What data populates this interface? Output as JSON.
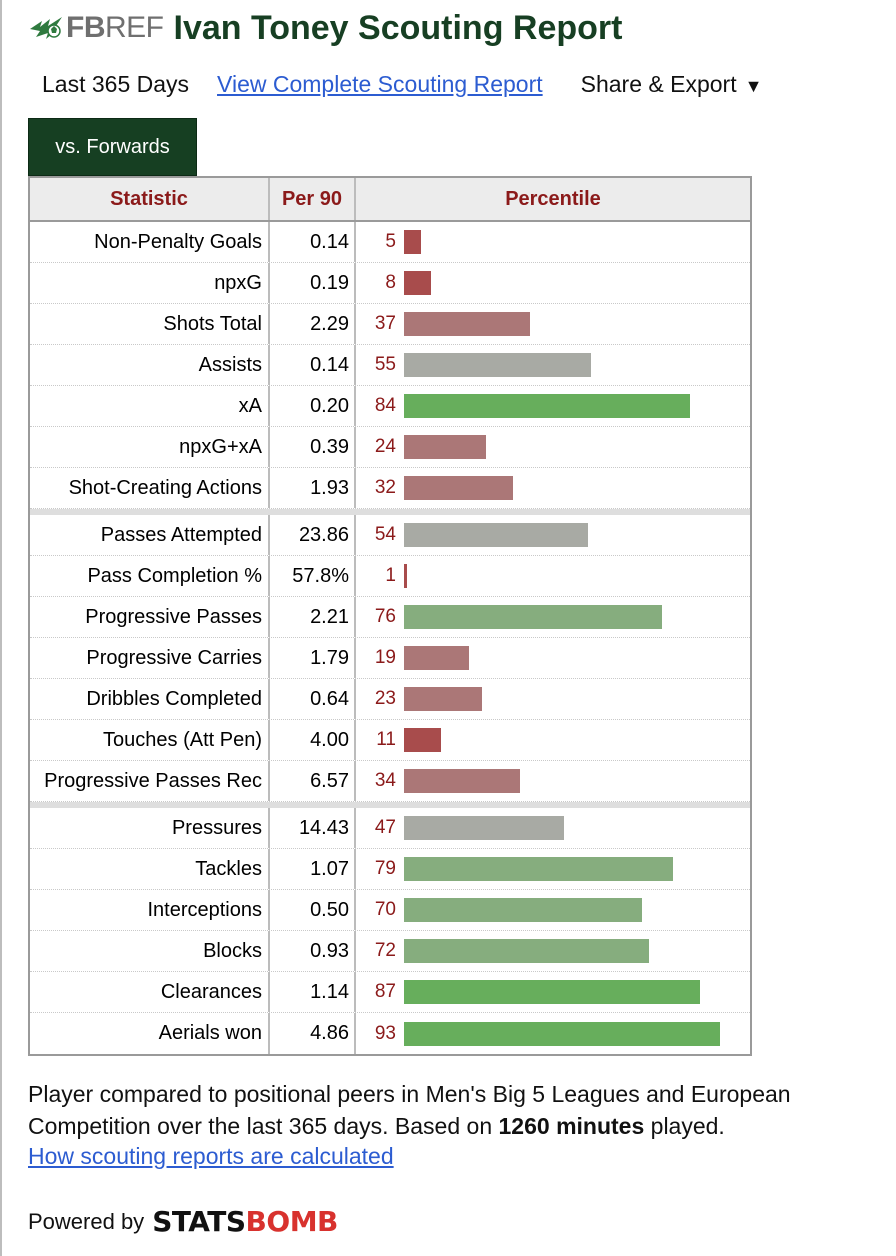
{
  "header": {
    "logo_bold": "FB",
    "logo_light": "REF",
    "title": "Ivan Toney Scouting Report",
    "logo_icon": "fbref-ball-icon"
  },
  "subnav": {
    "period": "Last 365 Days",
    "full_link": "View Complete Scouting Report",
    "share": "Share & Export",
    "caret": "▼"
  },
  "tab": {
    "label": "vs. Forwards"
  },
  "table": {
    "headers": [
      "Statistic",
      "Per 90",
      "Percentile"
    ],
    "groups": [
      [
        {
          "stat": "Non-Penalty Goals",
          "per90": "0.14",
          "pct": 5
        },
        {
          "stat": "npxG",
          "per90": "0.19",
          "pct": 8
        },
        {
          "stat": "Shots Total",
          "per90": "2.29",
          "pct": 37
        },
        {
          "stat": "Assists",
          "per90": "0.14",
          "pct": 55
        },
        {
          "stat": "xA",
          "per90": "0.20",
          "pct": 84
        },
        {
          "stat": "npxG+xA",
          "per90": "0.39",
          "pct": 24
        },
        {
          "stat": "Shot-Creating Actions",
          "per90": "1.93",
          "pct": 32
        }
      ],
      [
        {
          "stat": "Passes Attempted",
          "per90": "23.86",
          "pct": 54
        },
        {
          "stat": "Pass Completion %",
          "per90": "57.8%",
          "pct": 1
        },
        {
          "stat": "Progressive Passes",
          "per90": "2.21",
          "pct": 76
        },
        {
          "stat": "Progressive Carries",
          "per90": "1.79",
          "pct": 19
        },
        {
          "stat": "Dribbles Completed",
          "per90": "0.64",
          "pct": 23
        },
        {
          "stat": "Touches (Att Pen)",
          "per90": "4.00",
          "pct": 11
        },
        {
          "stat": "Progressive Passes Rec",
          "per90": "6.57",
          "pct": 34
        }
      ],
      [
        {
          "stat": "Pressures",
          "per90": "14.43",
          "pct": 47
        },
        {
          "stat": "Tackles",
          "per90": "1.07",
          "pct": 79
        },
        {
          "stat": "Interceptions",
          "per90": "0.50",
          "pct": 70
        },
        {
          "stat": "Blocks",
          "per90": "0.93",
          "pct": 72
        },
        {
          "stat": "Clearances",
          "per90": "1.14",
          "pct": 87
        },
        {
          "stat": "Aerials won",
          "per90": "4.86",
          "pct": 93
        }
      ]
    ],
    "colors": {
      "low": "#a84c4c",
      "midlow": "#ab7777",
      "mid": "#a8aaa4",
      "midhigh": "#86ad7e",
      "high": "#67ae5c"
    }
  },
  "footer": {
    "note_pre": "Player compared to positional peers in Men's Big 5 Leagues and European Competition over the last 365 days. Based on ",
    "note_bold": "1260 minutes",
    "note_post": " played.",
    "how_link": "How scouting reports are calculated",
    "powered": "Powered by",
    "sb_stats": "STATS",
    "sb_bomb": "BOMB"
  }
}
